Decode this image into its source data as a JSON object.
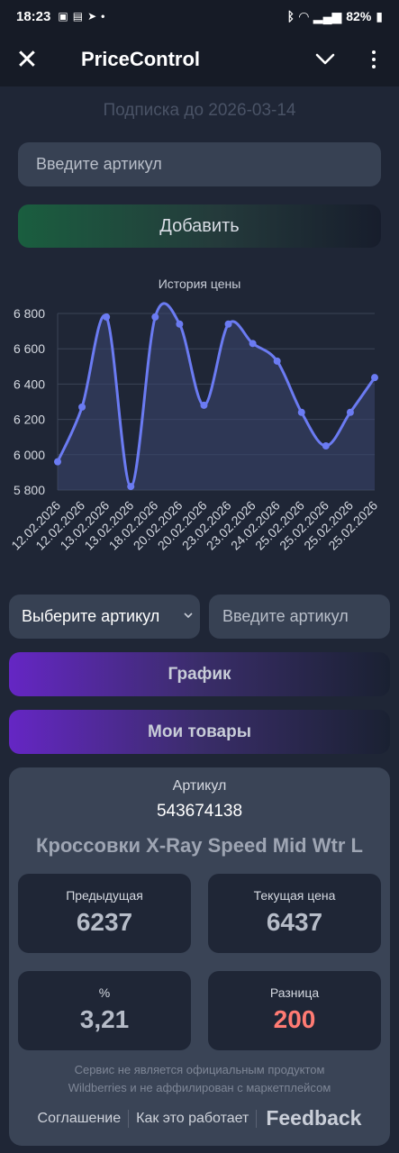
{
  "status": {
    "time": "18:23",
    "battery": "82%"
  },
  "app": {
    "title": "PriceControl"
  },
  "subscription": "Подписка до 2026-03-14",
  "inputs": {
    "article_placeholder": "Введите артикул",
    "article2_placeholder": "Введите артикул"
  },
  "buttons": {
    "add": "Добавить",
    "graph": "График",
    "my_goods": "Мои товары"
  },
  "select": {
    "value": "Выберите артикул"
  },
  "chart_data": {
    "type": "line",
    "title": "История цены",
    "x": [
      "12.02.2026",
      "12.02.2026",
      "13.02.2026",
      "13.02.2026",
      "18.02.2026",
      "20.02.2026",
      "20.02.2026",
      "23.02.2026",
      "23.02.2026",
      "24.02.2026",
      "25.02.2026",
      "25.02.2026",
      "25.02.2026",
      "25.02.2026"
    ],
    "values": [
      5960,
      6270,
      6780,
      5820,
      6780,
      6740,
      6280,
      6740,
      6630,
      6530,
      6240,
      6050,
      6240,
      6437
    ],
    "ylim": [
      5800,
      6800
    ],
    "yticks": [
      {
        "v": 5800,
        "label": "5 800"
      },
      {
        "v": 6000,
        "label": "6 000"
      },
      {
        "v": 6200,
        "label": "6 200"
      },
      {
        "v": 6400,
        "label": "6 400"
      },
      {
        "v": 6600,
        "label": "6 600"
      },
      {
        "v": 6800,
        "label": "6 800"
      }
    ],
    "grid": true,
    "colors": {
      "line": "#6b7bf2",
      "fill": "#3a4670"
    }
  },
  "card": {
    "article_label": "Артикул",
    "article": "543674138",
    "product_name": "Кроссовки X-Ray Speed Mid Wtr L",
    "prev_label": "Предыдущая",
    "prev_value": "6237",
    "cur_label": "Текущая цена",
    "cur_value": "6437",
    "pct_label": "%",
    "pct_value": "3,21",
    "diff_label": "Разница",
    "diff_value": "200",
    "disclaimer_1": "Сервис не является официальным продуктом",
    "disclaimer_2": "Wildberries и не аффилирован с маркетплейсом",
    "link_agreement": "Соглашение",
    "link_how": "Как это работает",
    "link_feedback": "Feedback"
  }
}
